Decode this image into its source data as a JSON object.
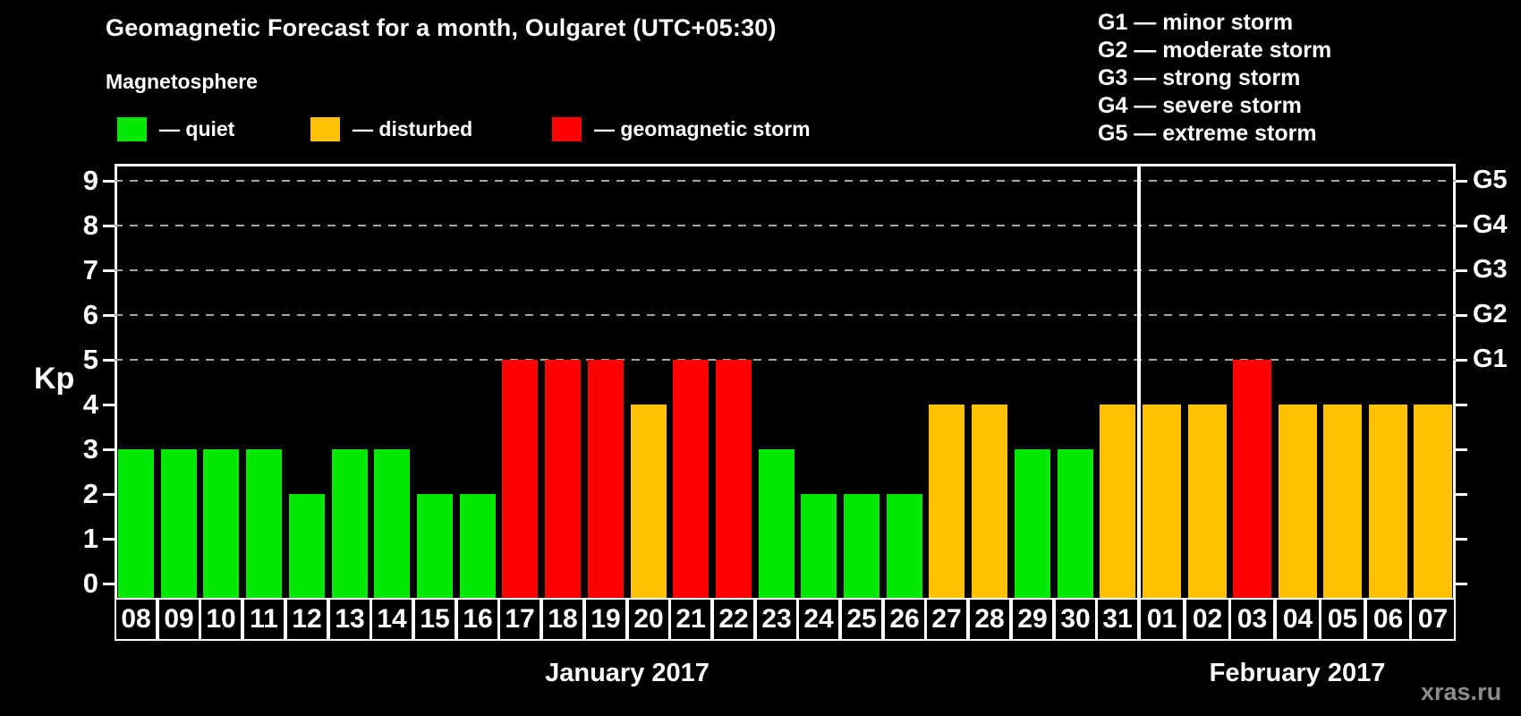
{
  "title": "Geomagnetic Forecast for a month, Oulgaret (UTC+05:30)",
  "subtitle": "Magnetosphere",
  "watermark": "xras.ru",
  "colors": {
    "quiet": "#00e800",
    "disturbed": "#ffc000",
    "storm": "#ff0000",
    "background": "#000000",
    "axis": "#ffffff",
    "grid": "#a6a6a6",
    "watermark": "#8c8c8c"
  },
  "legend": {
    "items": [
      {
        "name": "quiet",
        "label": "— quiet",
        "color": "#00e800"
      },
      {
        "name": "disturbed",
        "label": "— disturbed",
        "color": "#ffc000"
      },
      {
        "name": "storm",
        "label": "— geomagnetic storm",
        "color": "#ff0000"
      }
    ]
  },
  "g_legend": [
    "G1 — minor storm",
    "G2 — moderate storm",
    "G3 — strong storm",
    "G4 — severe storm",
    "G5 — extreme storm"
  ],
  "y_axis": {
    "label": "Kp",
    "ticks": [
      0,
      1,
      2,
      3,
      4,
      5,
      6,
      7,
      8,
      9
    ]
  },
  "right_axis": {
    "labels": [
      {
        "text": "G1",
        "kp": 5
      },
      {
        "text": "G2",
        "kp": 6
      },
      {
        "text": "G3",
        "kp": 7
      },
      {
        "text": "G4",
        "kp": 8
      },
      {
        "text": "G5",
        "kp": 9
      }
    ]
  },
  "chart_data": {
    "type": "bar",
    "title": "Geomagnetic Forecast for a month, Oulgaret (UTC+05:30)",
    "ylabel": "Kp",
    "ylim": [
      0,
      9
    ],
    "grid_levels": [
      5,
      6,
      7,
      8,
      9
    ],
    "legend_position": "top-left",
    "months": [
      {
        "label": "January 2017",
        "days": 24
      },
      {
        "label": "February 2017",
        "days": 7
      }
    ],
    "points": [
      {
        "day": "08",
        "kp": 3,
        "state": "quiet"
      },
      {
        "day": "09",
        "kp": 3,
        "state": "quiet"
      },
      {
        "day": "10",
        "kp": 3,
        "state": "quiet"
      },
      {
        "day": "11",
        "kp": 3,
        "state": "quiet"
      },
      {
        "day": "12",
        "kp": 2,
        "state": "quiet"
      },
      {
        "day": "13",
        "kp": 3,
        "state": "quiet"
      },
      {
        "day": "14",
        "kp": 3,
        "state": "quiet"
      },
      {
        "day": "15",
        "kp": 2,
        "state": "quiet"
      },
      {
        "day": "16",
        "kp": 2,
        "state": "quiet"
      },
      {
        "day": "17",
        "kp": 5,
        "state": "storm"
      },
      {
        "day": "18",
        "kp": 5,
        "state": "storm"
      },
      {
        "day": "19",
        "kp": 5,
        "state": "storm"
      },
      {
        "day": "20",
        "kp": 4,
        "state": "disturbed"
      },
      {
        "day": "21",
        "kp": 5,
        "state": "storm"
      },
      {
        "day": "22",
        "kp": 5,
        "state": "storm"
      },
      {
        "day": "23",
        "kp": 3,
        "state": "quiet"
      },
      {
        "day": "24",
        "kp": 2,
        "state": "quiet"
      },
      {
        "day": "25",
        "kp": 2,
        "state": "quiet"
      },
      {
        "day": "26",
        "kp": 2,
        "state": "quiet"
      },
      {
        "day": "27",
        "kp": 4,
        "state": "disturbed"
      },
      {
        "day": "28",
        "kp": 4,
        "state": "disturbed"
      },
      {
        "day": "29",
        "kp": 3,
        "state": "quiet"
      },
      {
        "day": "30",
        "kp": 3,
        "state": "quiet"
      },
      {
        "day": "31",
        "kp": 4,
        "state": "disturbed"
      },
      {
        "day": "01",
        "kp": 4,
        "state": "disturbed"
      },
      {
        "day": "02",
        "kp": 4,
        "state": "disturbed"
      },
      {
        "day": "03",
        "kp": 5,
        "state": "storm"
      },
      {
        "day": "04",
        "kp": 4,
        "state": "disturbed"
      },
      {
        "day": "05",
        "kp": 4,
        "state": "disturbed"
      },
      {
        "day": "06",
        "kp": 4,
        "state": "disturbed"
      },
      {
        "day": "07",
        "kp": 4,
        "state": "disturbed"
      }
    ]
  }
}
